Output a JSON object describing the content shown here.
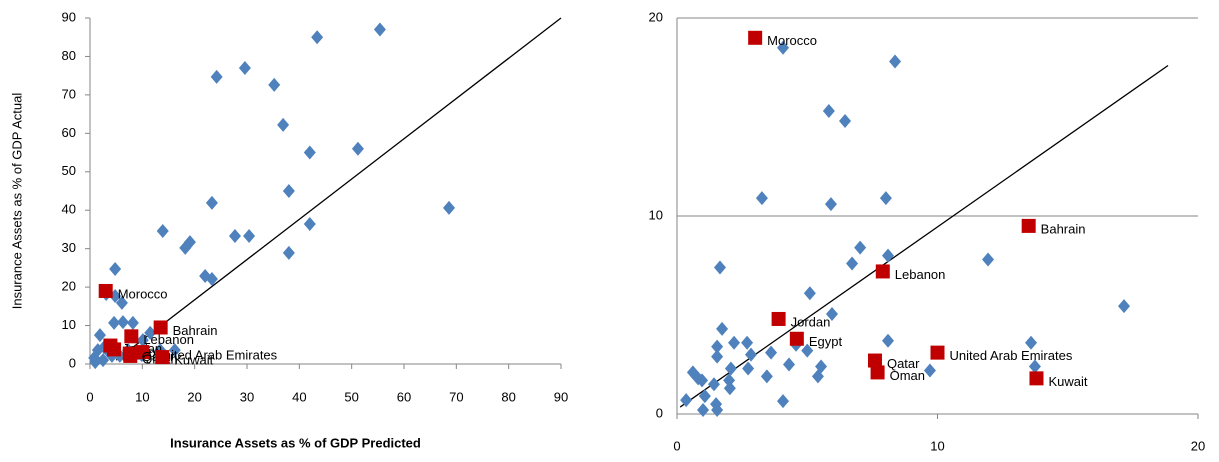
{
  "chart_data": [
    {
      "type": "scatter",
      "x_label": "Insurance Assets as % of GDP Predicted",
      "y_label": "Insurance Assets as % of GDP Actual",
      "xlim": [
        0,
        90
      ],
      "ylim": [
        0,
        90
      ],
      "xticks": [
        0,
        10,
        20,
        30,
        40,
        50,
        60,
        70,
        80,
        90
      ],
      "yticks": [
        0,
        10,
        20,
        30,
        40,
        50,
        60,
        70,
        80,
        90
      ],
      "grid": false,
      "fit_line": {
        "x": [
          5,
          90
        ],
        "y": [
          1,
          90
        ],
        "color": "#000000"
      },
      "series": [
        {
          "color": "#4f81bd",
          "marker": "diamond",
          "x": [
            55.4,
            43.4,
            29.6,
            24.2,
            35.2,
            36.9,
            42.0,
            51.2,
            38.0,
            68.6,
            13.9,
            27.7,
            30.4,
            23.3,
            19.1,
            18.2,
            42.0,
            38.0,
            22.0,
            23.3,
            4.8,
            4.8,
            6.1,
            3.1,
            4.6,
            6.3,
            8.2,
            1.9,
            11.5,
            10.1,
            0.8,
            1.5,
            2.7,
            3.4,
            4.2,
            1.0,
            2.5,
            5.7,
            7.3,
            9.9,
            13.4,
            16.2
          ],
          "y": [
            87,
            85,
            77,
            74.7,
            72.6,
            62.2,
            55,
            56,
            45,
            40.6,
            34.6,
            33.3,
            33.3,
            41.9,
            31.7,
            30.2,
            36.4,
            28.9,
            22.9,
            22.1,
            24.7,
            17.7,
            15.9,
            18.2,
            10.7,
            10.9,
            10.7,
            7.5,
            8.1,
            6.2,
            1.6,
            3.6,
            4.4,
            3.4,
            2.1,
            0.5,
            1.0,
            2.1,
            3.6,
            2.3,
            3.6,
            3.6
          ]
        },
        {
          "color": "#c00000",
          "marker": "square",
          "x": [
            3.0,
            3.9,
            4.6,
            7.9,
            13.5,
            10.0,
            7.6,
            7.7,
            13.8
          ],
          "y": [
            19.0,
            4.8,
            3.8,
            7.2,
            9.5,
            3.1,
            2.7,
            2.1,
            1.8
          ],
          "labels": [
            "Morocco",
            "Jordan",
            "Egypt",
            "Lebanon",
            "Bahrain",
            "United Arab Emirates",
            "Qatar",
            "Oman",
            "Kuwait"
          ]
        }
      ]
    },
    {
      "type": "scatter",
      "xlim": [
        0,
        20
      ],
      "ylim": [
        0,
        20
      ],
      "xticks": [
        0,
        10,
        20
      ],
      "yticks": [
        0,
        10,
        20
      ],
      "grid": true,
      "fit_line": {
        "x": [
          0.12,
          18.85
        ],
        "y": [
          0.35,
          17.6
        ],
        "color": "#000000"
      },
      "series": [
        {
          "color": "#4f81bd",
          "marker": "diamond",
          "x": [
            4.07,
            8.37,
            5.83,
            6.45,
            3.26,
            5.91,
            8.02,
            7.03,
            6.72,
            8.1,
            11.94,
            17.16,
            1.65,
            5.1,
            5.95,
            1.73,
            1.54,
            1.54,
            2.69,
            2.19,
            2.84,
            3.61,
            4.57,
            5.0,
            5.53,
            5.41,
            4.3,
            3.45,
            2.73,
            2.07,
            2.0,
            2.03,
            1.42,
            1.5,
            1.54,
            0.96,
            0.61,
            0.81,
            1.07,
            1.0,
            0.35,
            4.07,
            8.1,
            9.71,
            13.59,
            13.74
          ],
          "y": [
            18.5,
            17.8,
            15.3,
            14.8,
            10.9,
            10.6,
            10.9,
            8.4,
            7.6,
            8.0,
            7.8,
            5.45,
            7.4,
            6.1,
            5.05,
            4.3,
            3.4,
            2.9,
            3.6,
            3.6,
            3.0,
            3.1,
            3.5,
            3.2,
            2.4,
            1.9,
            2.5,
            1.9,
            2.3,
            2.3,
            1.7,
            1.3,
            1.5,
            0.5,
            0.2,
            1.7,
            2.1,
            1.8,
            0.9,
            0.2,
            0.7,
            0.65,
            3.7,
            2.2,
            3.6,
            2.4
          ]
        },
        {
          "color": "#c00000",
          "marker": "square",
          "x": [
            3.0,
            3.9,
            4.6,
            7.9,
            13.5,
            10.0,
            7.6,
            7.7,
            13.8
          ],
          "y": [
            19.0,
            4.8,
            3.8,
            7.2,
            9.5,
            3.1,
            2.7,
            2.1,
            1.8
          ],
          "labels": [
            "Morocco",
            "Jordan",
            "Egypt",
            "Lebanon",
            "Bahrain",
            "United Arab Emirates",
            "Qatar",
            "Oman",
            "Kuwait"
          ]
        }
      ]
    }
  ]
}
